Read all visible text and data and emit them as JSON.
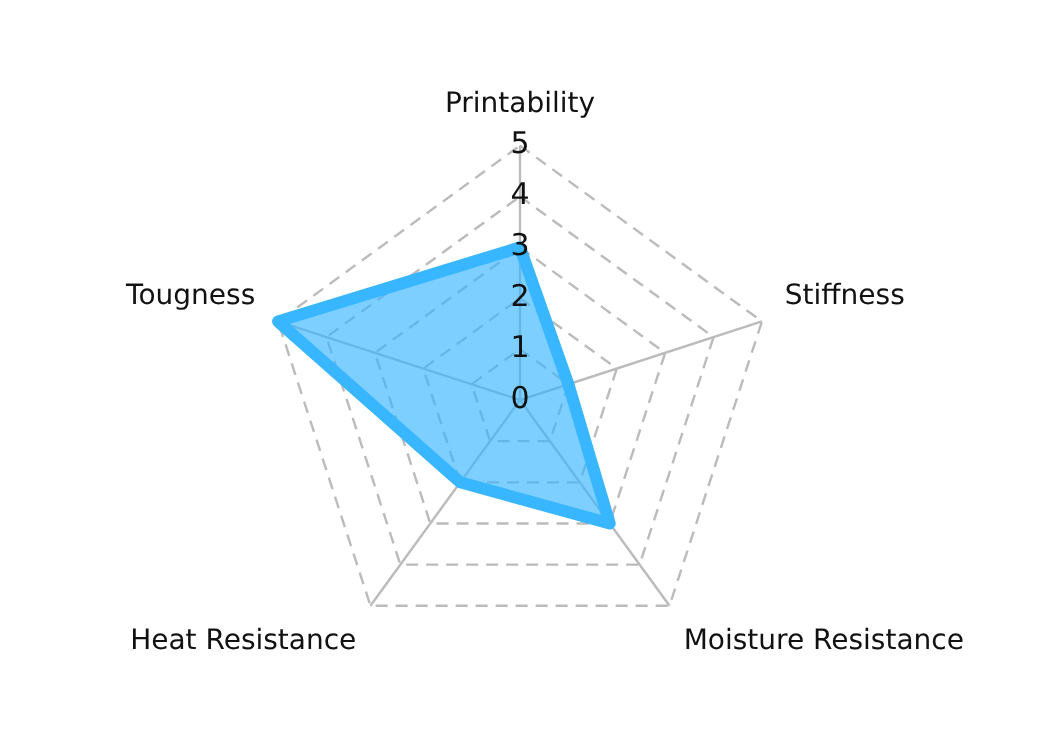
{
  "chart_data": {
    "type": "radar",
    "categories": [
      "Printability",
      "Stiffness",
      "Moisture Resistance",
      "Heat Resistance",
      "Tougness"
    ],
    "series": [
      {
        "color": "#38b6ff",
        "values": [
          3,
          1,
          3,
          2,
          5
        ]
      }
    ],
    "ylim": [
      0,
      5
    ],
    "yticks": [
      0,
      1,
      2,
      3,
      4,
      5
    ],
    "grid": true,
    "legend": false,
    "marker": "none"
  }
}
